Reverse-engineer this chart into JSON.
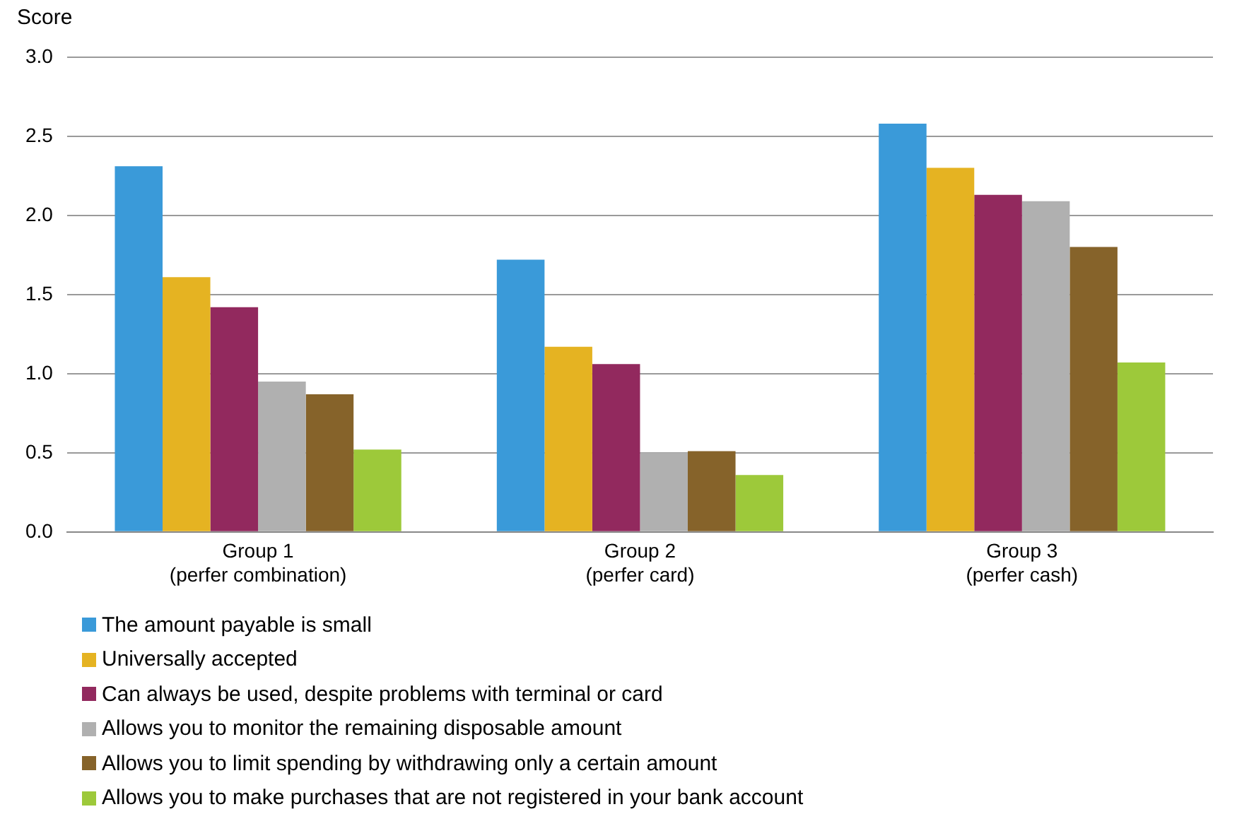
{
  "chart_data": {
    "type": "bar",
    "ylabel": "Score",
    "categories": [
      "Group 1\n(perfer combination)",
      "Group 2\n(perfer card)",
      "Group 3\n(perfer cash)"
    ],
    "series": [
      {
        "name": "The amount payable is small",
        "color": "#3a9ad9",
        "values": [
          2.31,
          1.72,
          2.58
        ]
      },
      {
        "name": "Universally accepted",
        "color": "#e5b322",
        "values": [
          1.61,
          1.17,
          2.3
        ]
      },
      {
        "name": "Can always be used, despite problems with terminal or card",
        "color": "#92295e",
        "values": [
          1.42,
          1.06,
          2.13
        ]
      },
      {
        "name": "Allows you to monitor the remaining disposable amount",
        "color": "#b0b0b0",
        "values": [
          0.95,
          0.5,
          2.09
        ]
      },
      {
        "name": "Allows you to limit spending by withdrawing only a certain amount",
        "color": "#86632a",
        "values": [
          0.87,
          0.51,
          1.8
        ]
      },
      {
        "name": "Allows you to make purchases that are not registered in your bank account",
        "color": "#9dc93a",
        "values": [
          0.52,
          0.36,
          1.07
        ]
      }
    ],
    "ylim": [
      0,
      3
    ],
    "yticks": [
      {
        "value": 0,
        "label": "0.0"
      },
      {
        "value": 0.5,
        "label": "0.5"
      },
      {
        "value": 1,
        "label": "1.0"
      },
      {
        "value": 1.5,
        "label": "1.5"
      },
      {
        "value": 2,
        "label": "2.0"
      },
      {
        "value": 2.5,
        "label": "2.5"
      },
      {
        "value": 3,
        "label": "3.0"
      }
    ],
    "grid": "y",
    "legend": "bottom"
  }
}
